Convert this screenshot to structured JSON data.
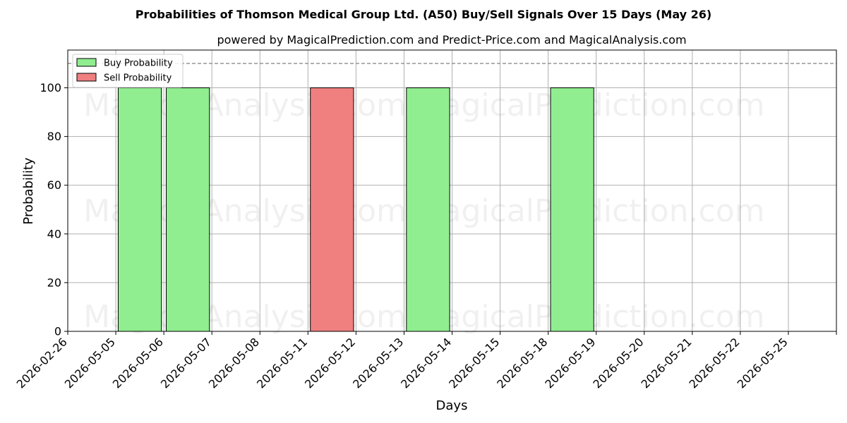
{
  "chart_data": {
    "type": "bar",
    "title": "Probabilities of Thomson Medical Group Ltd. (A50) Buy/Sell Signals Over 15 Days (May 26)",
    "subtitle": "powered by MagicalPrediction.com and Predict-Price.com and MagicalAnalysis.com",
    "xlabel": "Days",
    "ylabel": "Probability",
    "ylim": [
      0,
      115.5
    ],
    "yticks": [
      0,
      20,
      40,
      60,
      80,
      100
    ],
    "categories": [
      "2026-02-26",
      "2026-05-05",
      "2026-05-06",
      "2026-05-07",
      "2026-05-08",
      "2026-05-11",
      "2026-05-12",
      "2026-05-13",
      "2026-05-14",
      "2026-05-15",
      "2026-05-18",
      "2026-05-19",
      "2026-05-20",
      "2026-05-21",
      "2026-05-22",
      "2026-05-25"
    ],
    "series": [
      {
        "name": "Buy Probability",
        "color": "#90ee90",
        "values": [
          0,
          100,
          100,
          0,
          0,
          0,
          0,
          100,
          0,
          0,
          100,
          0,
          0,
          0,
          0,
          0
        ]
      },
      {
        "name": "Sell Probability",
        "color": "#f08080",
        "values": [
          0,
          0,
          0,
          0,
          0,
          100,
          0,
          0,
          0,
          0,
          0,
          0,
          0,
          0,
          0,
          0
        ]
      }
    ],
    "reference_line": {
      "value": 110,
      "style": "dashed",
      "color": "#808080"
    },
    "grid": true,
    "legend_position": "top-left",
    "watermarks": [
      "MagicalAnalysis.com",
      "MagicalPrediction.com"
    ]
  }
}
